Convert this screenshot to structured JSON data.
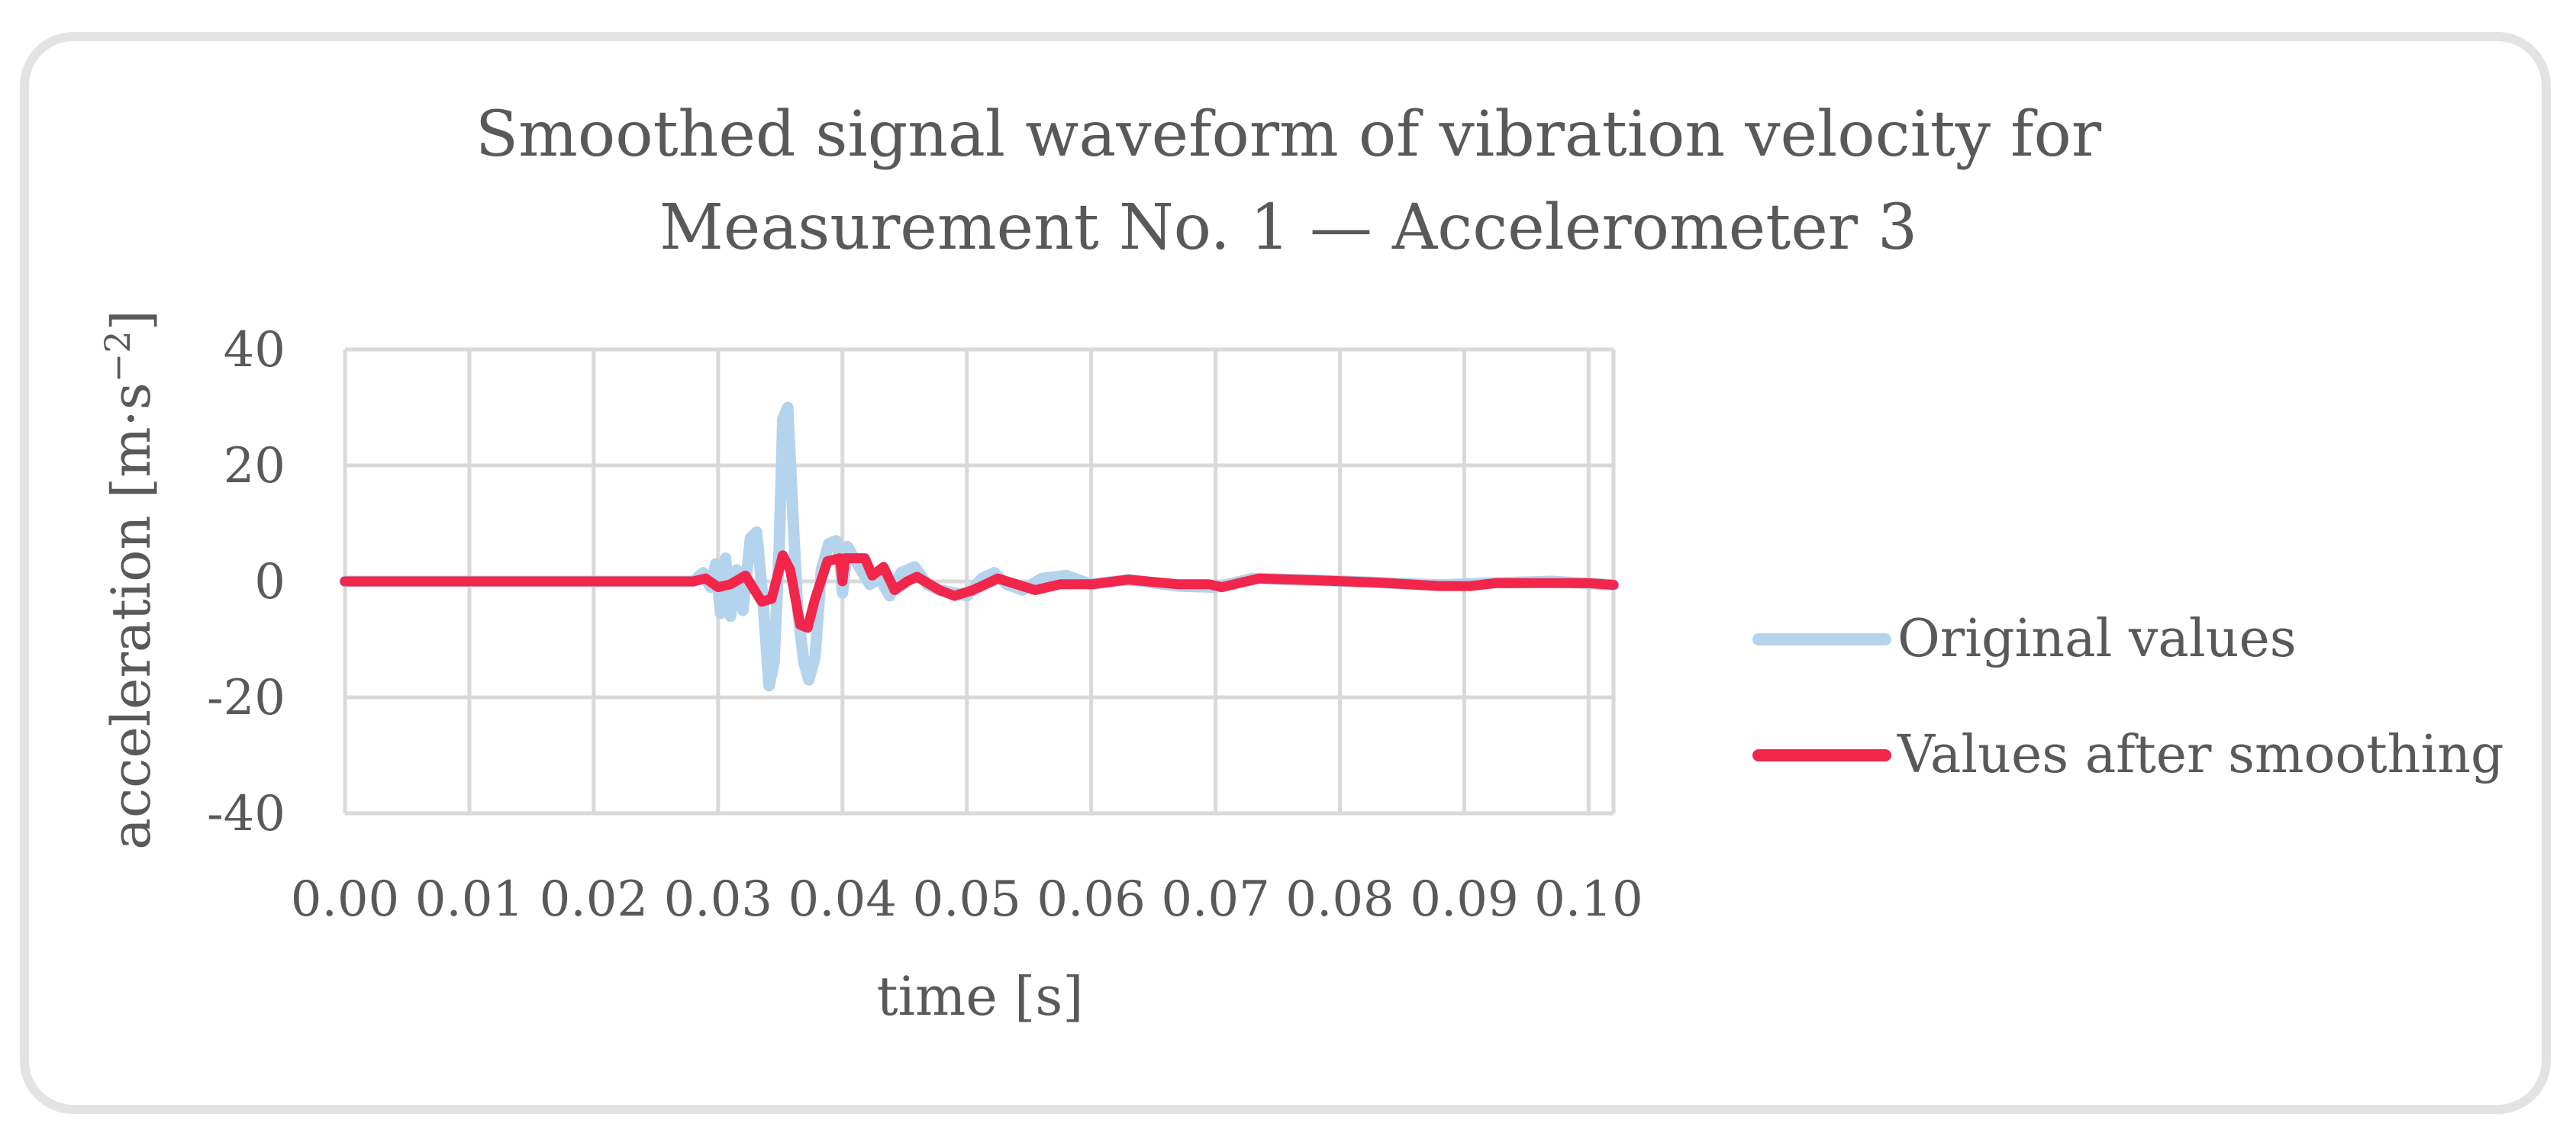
{
  "chart_data": {
    "type": "line",
    "title_lines": [
      "Smoothed signal waveform of vibration velocity for",
      "Measurement No. 1 — Accelerometer 3"
    ],
    "xlabel": "time [s]",
    "ylabel_main": "acceleration [m·s",
    "ylabel_sup": "−2",
    "ylabel_close": "]",
    "xlim": [
      0,
      0.102
    ],
    "ylim": [
      -40,
      40
    ],
    "x_ticks": [
      0.0,
      0.01,
      0.02,
      0.03,
      0.04,
      0.05,
      0.06,
      0.07,
      0.08,
      0.09,
      0.1
    ],
    "x_tick_labels": [
      "0.00",
      "0.01",
      "0.02",
      "0.03",
      "0.04",
      "0.05",
      "0.06",
      "0.07",
      "0.08",
      "0.09",
      "0.10"
    ],
    "y_ticks": [
      40,
      20,
      0,
      -20,
      -40
    ],
    "y_tick_labels": [
      "40",
      "20",
      "0",
      "-20",
      "-40"
    ],
    "grid": true,
    "legend_position": "right",
    "series": [
      {
        "name": "Original values",
        "color": "#b4d3ec",
        "points": [
          [
            0.0,
            0
          ],
          [
            0.028,
            0
          ],
          [
            0.0288,
            1.5
          ],
          [
            0.0294,
            -1
          ],
          [
            0.0298,
            3
          ],
          [
            0.0302,
            -5.5
          ],
          [
            0.0306,
            4
          ],
          [
            0.031,
            -6
          ],
          [
            0.0315,
            2
          ],
          [
            0.032,
            -5
          ],
          [
            0.0326,
            7.5
          ],
          [
            0.0331,
            8.5
          ],
          [
            0.0336,
            -3
          ],
          [
            0.0341,
            -18
          ],
          [
            0.0345,
            -14
          ],
          [
            0.0349,
            5
          ],
          [
            0.0352,
            28
          ],
          [
            0.0356,
            30
          ],
          [
            0.036,
            12
          ],
          [
            0.0364,
            -5
          ],
          [
            0.0369,
            -14
          ],
          [
            0.0373,
            -17
          ],
          [
            0.0378,
            -13
          ],
          [
            0.0383,
            2
          ],
          [
            0.0389,
            6.5
          ],
          [
            0.0395,
            7
          ],
          [
            0.0398,
            4
          ],
          [
            0.04,
            -2
          ],
          [
            0.0404,
            6
          ],
          [
            0.0412,
            3
          ],
          [
            0.0422,
            -0.5
          ],
          [
            0.043,
            0.5
          ],
          [
            0.0438,
            -2.5
          ],
          [
            0.0447,
            1.5
          ],
          [
            0.0458,
            2.5
          ],
          [
            0.0468,
            -0.5
          ],
          [
            0.0478,
            -1.5
          ],
          [
            0.049,
            -2
          ],
          [
            0.05,
            -2.5
          ],
          [
            0.0512,
            0.5
          ],
          [
            0.0522,
            1.5
          ],
          [
            0.0532,
            -0.5
          ],
          [
            0.0545,
            -1.5
          ],
          [
            0.056,
            0.5
          ],
          [
            0.058,
            1
          ],
          [
            0.06,
            -0.5
          ],
          [
            0.063,
            0.3
          ],
          [
            0.067,
            -0.8
          ],
          [
            0.07,
            -1.0
          ],
          [
            0.073,
            0.5
          ],
          [
            0.078,
            0.2
          ],
          [
            0.083,
            -0.2
          ],
          [
            0.088,
            -0.6
          ],
          [
            0.092,
            -0.3
          ],
          [
            0.097,
            0
          ],
          [
            0.102,
            -0.6
          ]
        ]
      },
      {
        "name": "Values after smoothing",
        "color": "#f1264a",
        "points": [
          [
            0.0,
            0
          ],
          [
            0.028,
            0
          ],
          [
            0.029,
            0.5
          ],
          [
            0.03,
            -1
          ],
          [
            0.031,
            -0.5
          ],
          [
            0.0322,
            1
          ],
          [
            0.0335,
            -3.5
          ],
          [
            0.0343,
            -3
          ],
          [
            0.0352,
            4.5
          ],
          [
            0.0358,
            2
          ],
          [
            0.0366,
            -7.5
          ],
          [
            0.0372,
            -8
          ],
          [
            0.0378,
            -3
          ],
          [
            0.0388,
            3.5
          ],
          [
            0.0398,
            4
          ],
          [
            0.04,
            0
          ],
          [
            0.0402,
            4
          ],
          [
            0.0412,
            4
          ],
          [
            0.0418,
            4
          ],
          [
            0.0424,
            1
          ],
          [
            0.0433,
            2.5
          ],
          [
            0.0442,
            -1.5
          ],
          [
            0.0452,
            0
          ],
          [
            0.046,
            0.8
          ],
          [
            0.0478,
            -1.5
          ],
          [
            0.049,
            -2.5
          ],
          [
            0.0505,
            -1.5
          ],
          [
            0.0525,
            0.5
          ],
          [
            0.054,
            -0.5
          ],
          [
            0.0555,
            -1.5
          ],
          [
            0.0575,
            -0.5
          ],
          [
            0.06,
            -0.5
          ],
          [
            0.063,
            0.3
          ],
          [
            0.067,
            -0.5
          ],
          [
            0.0695,
            -0.5
          ],
          [
            0.0705,
            -1.0
          ],
          [
            0.0735,
            0.5
          ],
          [
            0.078,
            0.2
          ],
          [
            0.083,
            -0.2
          ],
          [
            0.088,
            -0.8
          ],
          [
            0.0905,
            -0.8
          ],
          [
            0.0925,
            -0.3
          ],
          [
            0.097,
            -0.3
          ],
          [
            0.1,
            -0.3
          ],
          [
            0.102,
            -0.6
          ]
        ]
      }
    ]
  }
}
